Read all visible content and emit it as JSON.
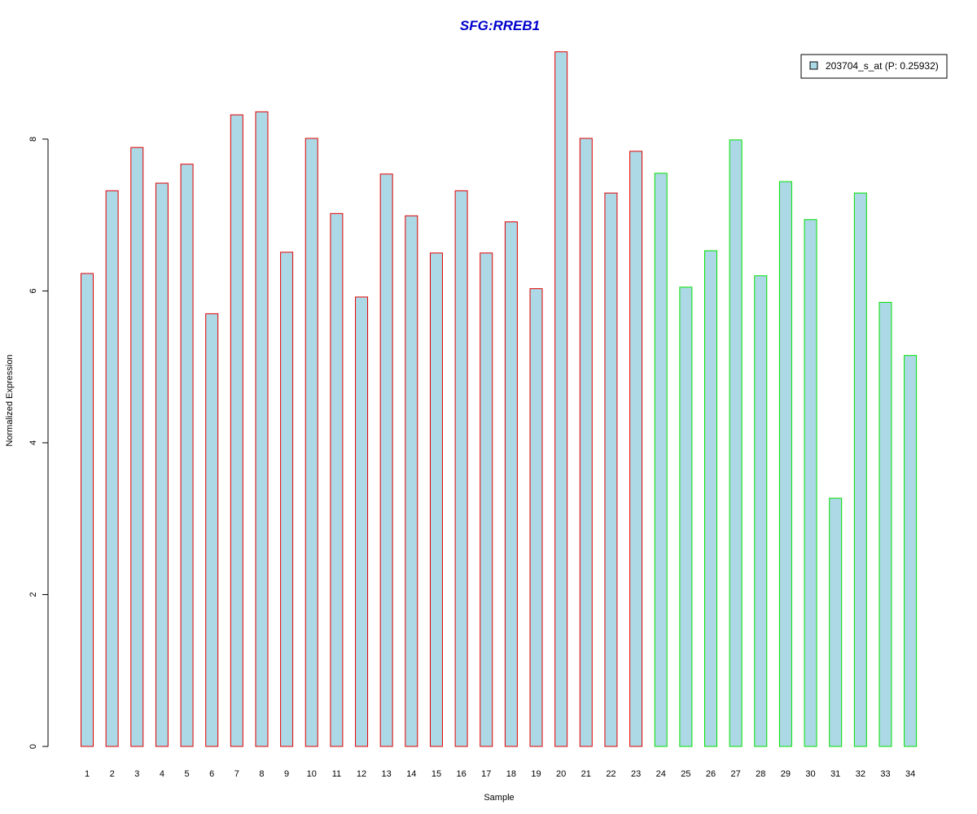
{
  "chart_data": {
    "type": "bar",
    "title": "SFG:RREB1",
    "xlabel": "Sample",
    "ylabel": "Normalized Expression",
    "categories": [
      "1",
      "2",
      "3",
      "4",
      "5",
      "6",
      "7",
      "8",
      "9",
      "10",
      "11",
      "12",
      "13",
      "14",
      "15",
      "16",
      "17",
      "18",
      "19",
      "20",
      "21",
      "22",
      "23",
      "24",
      "25",
      "26",
      "27",
      "28",
      "29",
      "30",
      "31",
      "32",
      "33",
      "34"
    ],
    "series": [
      {
        "name": "203704_s_at (P: 0.25932)",
        "values": [
          6.23,
          7.32,
          7.89,
          7.42,
          7.67,
          5.7,
          8.32,
          8.36,
          6.51,
          8.01,
          7.02,
          5.92,
          7.54,
          6.99,
          6.5,
          7.32,
          6.5,
          6.91,
          6.03,
          9.15,
          8.01,
          7.29,
          7.84,
          7.55,
          6.05,
          6.53,
          7.99,
          6.2,
          7.44,
          6.94,
          3.27,
          7.29,
          5.85,
          5.15
        ]
      }
    ],
    "groups": [
      {
        "from": "1",
        "to": "23",
        "border_color": "#e00000"
      },
      {
        "from": "24",
        "to": "34",
        "border_color": "#00e000"
      }
    ],
    "ylim": [
      0,
      9.2
    ],
    "yticks": [
      0,
      2,
      4,
      6,
      8
    ],
    "grid": false,
    "legend_position": "top-right",
    "bar_fill_color": "#add8e6",
    "title_color": "#0000cd"
  }
}
